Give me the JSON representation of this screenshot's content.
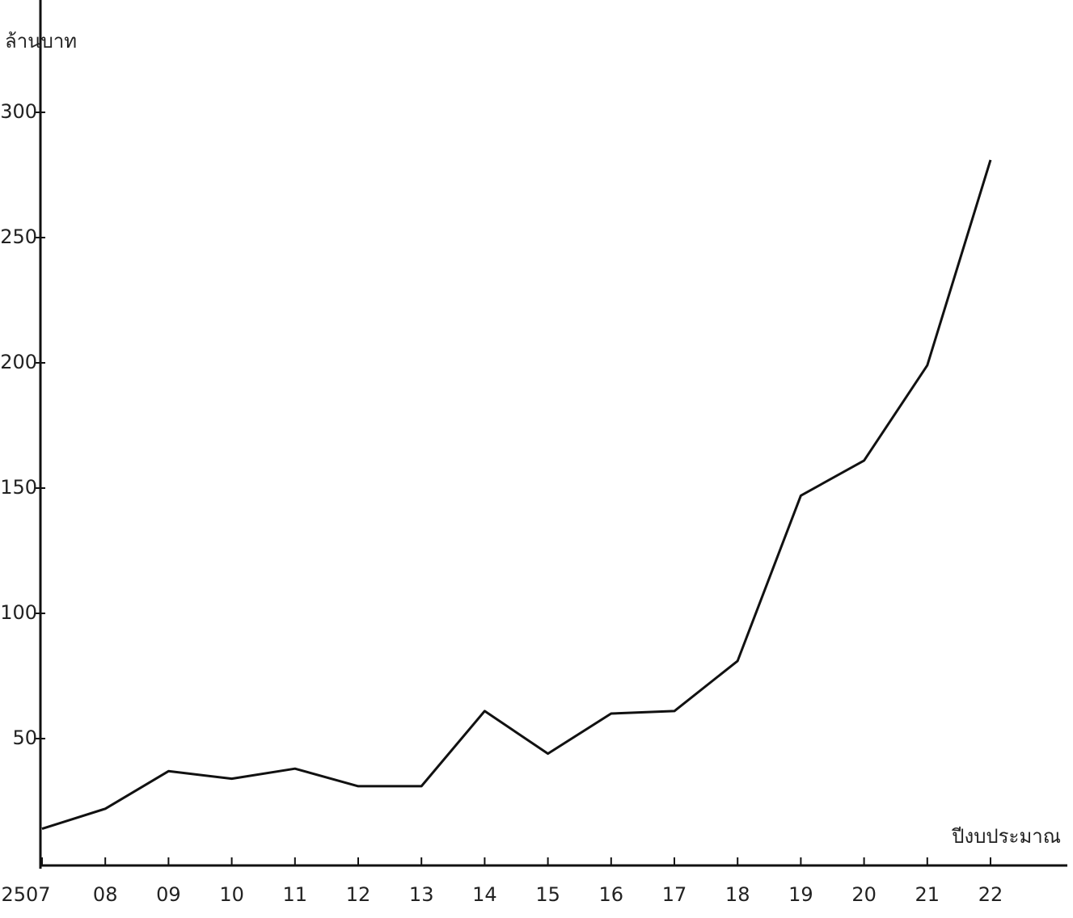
{
  "chart_data": {
    "type": "line",
    "y_label": "ล้านบาท",
    "x_label": "ปีงบประมาณ",
    "categories": [
      "2507",
      "08",
      "09",
      "10",
      "11",
      "12",
      "13",
      "14",
      "15",
      "16",
      "17",
      "18",
      "19",
      "20",
      "21",
      "22"
    ],
    "values": [
      14,
      22,
      37,
      34,
      38,
      31,
      31,
      61,
      44,
      60,
      61,
      81,
      147,
      161,
      199,
      281
    ],
    "color": "#111111",
    "ylim": [
      0,
      340
    ],
    "yticks": [
      50,
      100,
      150,
      200,
      250,
      300
    ],
    "grid": false
  }
}
